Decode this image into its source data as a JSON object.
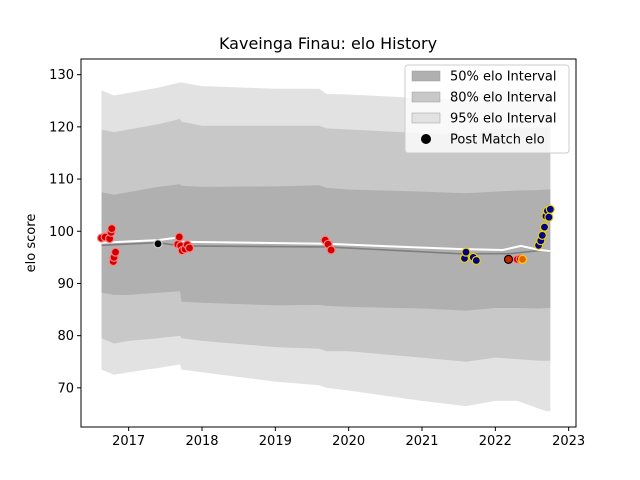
{
  "chart_data": {
    "type": "area",
    "title": "Kaveinga Finau: elo History",
    "xlabel": "",
    "ylabel": "elo score",
    "xlim": [
      2016.35,
      2023.1
    ],
    "ylim": [
      62.5,
      133
    ],
    "x_ticks": [
      2017,
      2018,
      2019,
      2020,
      2021,
      2022,
      2023
    ],
    "y_ticks": [
      70,
      80,
      90,
      100,
      110,
      120,
      130
    ],
    "grid": false,
    "legend_position": "top-right",
    "legend": [
      {
        "label": "50% elo Interval",
        "kind": "band",
        "color": "#b0b0b0"
      },
      {
        "label": "80% elo Interval",
        "kind": "band",
        "color": "#c8c8c8"
      },
      {
        "label": "95% elo Interval",
        "kind": "band",
        "color": "#e2e2e2"
      },
      {
        "label": "Post Match elo",
        "kind": "marker",
        "color": "#000000"
      }
    ],
    "bands": {
      "x": [
        2016.63,
        2016.8,
        2017.0,
        2017.4,
        2017.7,
        2017.72,
        2018.0,
        2019.0,
        2019.6,
        2019.7,
        2020.0,
        2021.0,
        2021.6,
        2022.0,
        2022.3,
        2022.6,
        2022.7,
        2022.75
      ],
      "b95_hi": [
        127,
        126,
        126.5,
        127.5,
        128.5,
        128.5,
        127.8,
        127.3,
        127.3,
        126.3,
        126.2,
        125.5,
        125.3,
        126.8,
        127.2,
        127.2,
        127.5,
        128
      ],
      "b95_lo": [
        73.5,
        72.5,
        73,
        73.8,
        74.5,
        73.5,
        73,
        71.2,
        70.5,
        70,
        69.5,
        67.5,
        66.5,
        67.5,
        67.5,
        66,
        65.5,
        65.5
      ],
      "b80_hi": [
        119.5,
        119,
        119.5,
        120.5,
        121.5,
        121,
        120.2,
        120.2,
        120.2,
        119.7,
        119.5,
        118.8,
        118.5,
        119.5,
        119.7,
        119.8,
        120,
        120
      ],
      "b80_lo": [
        79.5,
        78.5,
        79,
        79.5,
        80,
        79.5,
        79,
        77.8,
        77.5,
        77,
        77,
        75.8,
        75,
        75.8,
        75.5,
        75.2,
        75.2,
        75.2
      ],
      "b50_hi": [
        107.5,
        107,
        107.5,
        108.5,
        109,
        108.7,
        108.5,
        108.6,
        108.8,
        108.3,
        108,
        107.6,
        107.3,
        107.6,
        107.8,
        107.9,
        108,
        108
      ],
      "b50_lo": [
        88.2,
        87.8,
        87.8,
        88.2,
        88.5,
        86.5,
        86.3,
        85.8,
        85.9,
        85.7,
        85.5,
        85.2,
        84.8,
        85.3,
        85.3,
        85.2,
        85.3,
        85.3
      ]
    },
    "mean_line": {
      "color": "#ffffff",
      "x": [
        2016.63,
        2017.4,
        2017.68,
        2017.7,
        2019.7,
        2021.5,
        2022.1,
        2022.35,
        2022.6,
        2022.75
      ],
      "y": [
        97.8,
        98.3,
        98.8,
        98,
        97.6,
        96.6,
        96.4,
        97.2,
        96.4,
        96.2
      ]
    },
    "median_line": {
      "color": "#7f7f7f",
      "x": [
        2016.63,
        2017.4,
        2017.72,
        2019.7,
        2021.5,
        2022.2,
        2022.6,
        2022.75
      ],
      "y": [
        97.3,
        97.8,
        97.2,
        97,
        95.7,
        95.7,
        96.3,
        96.1
      ]
    },
    "series": [
      {
        "marker_fill": "#d00000",
        "marker_edge": "#ff8080",
        "points": [
          [
            2016.63,
            98.7
          ],
          [
            2016.68,
            98.9
          ],
          [
            2016.74,
            98.6
          ],
          [
            2016.76,
            99.8
          ],
          [
            2016.77,
            100.5
          ],
          [
            2016.79,
            94.2
          ],
          [
            2016.8,
            95
          ],
          [
            2016.82,
            96
          ],
          [
            2017.67,
            97.5
          ],
          [
            2017.69,
            98.9
          ],
          [
            2017.71,
            97.2
          ],
          [
            2017.73,
            96.3
          ],
          [
            2017.77,
            96.6
          ],
          [
            2017.8,
            97.4
          ],
          [
            2017.83,
            96.8
          ],
          [
            2019.68,
            98.3
          ],
          [
            2019.72,
            97.5
          ],
          [
            2019.76,
            96.4
          ],
          [
            2022.3,
            94.6
          ],
          [
            2022.34,
            94.7
          ]
        ]
      },
      {
        "marker_fill": "#000000",
        "marker_edge": "#d0d0d0",
        "points": [
          [
            2017.4,
            97.6
          ]
        ]
      },
      {
        "marker_fill": "#00008b",
        "marker_edge": "#e8d000",
        "points": [
          [
            2021.58,
            94.8
          ],
          [
            2021.6,
            96
          ],
          [
            2021.7,
            95
          ],
          [
            2021.74,
            94.4
          ],
          [
            2022.59,
            97.3
          ],
          [
            2022.62,
            98.2
          ],
          [
            2022.64,
            99.2
          ],
          [
            2022.67,
            100.8
          ],
          [
            2022.69,
            102.9
          ],
          [
            2022.71,
            103.9
          ],
          [
            2022.73,
            102.7
          ],
          [
            2022.75,
            104.2
          ]
        ]
      },
      {
        "marker_fill": "#cc2200",
        "marker_edge": "#000000",
        "points": [
          [
            2022.18,
            94.6
          ]
        ]
      },
      {
        "marker_fill": "#e56000",
        "marker_edge": "#ffd000",
        "points": [
          [
            2022.37,
            94.6
          ]
        ]
      }
    ]
  }
}
